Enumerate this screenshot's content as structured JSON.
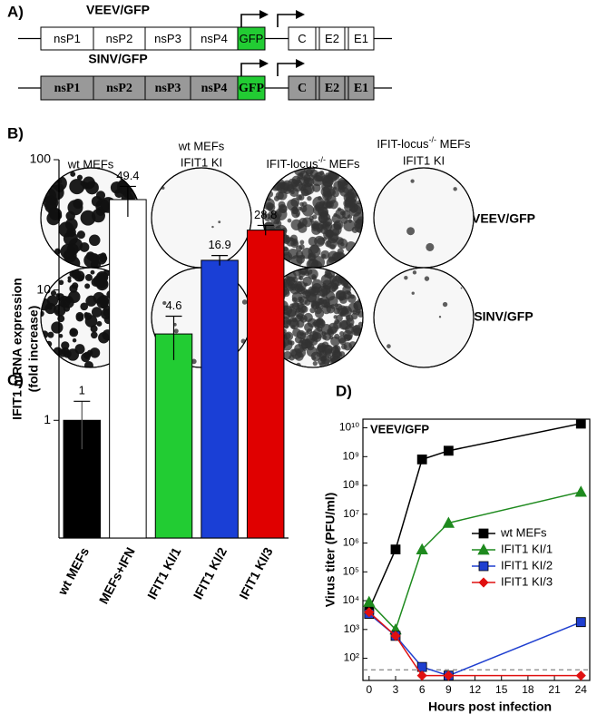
{
  "figure": {
    "panel_a": {
      "label": "A)",
      "constructs": [
        {
          "name": "VEEV/GFP",
          "segments": [
            "nsP1",
            "nsP2",
            "nsP3",
            "nsP4",
            "GFP",
            "C",
            "E2",
            "E1"
          ]
        },
        {
          "name": "SINV/GFP",
          "segments": [
            "nsP1",
            "nsP2",
            "nsP3",
            "nsP4",
            "GFP",
            "C",
            "E2",
            "E1"
          ]
        }
      ]
    },
    "panel_b": {
      "label": "B)",
      "columns": [
        {
          "lines": [
            "wt MEFs"
          ]
        },
        {
          "lines": [
            "wt MEFs",
            "IFIT1 KI"
          ]
        },
        {
          "main": "IFIT-locus",
          "sup": "-/-",
          "end": " MEFs"
        },
        {
          "main": "IFIT-locus",
          "sup": "-/-",
          "end": " MEFs",
          "line2": "IFIT1 KI"
        }
      ],
      "rows": [
        "VEEV/GFP",
        "SINV/GFP"
      ]
    },
    "panel_c_label": "C)",
    "panel_d_label": "D)"
  },
  "chart_data": [
    {
      "type": "bar",
      "y_label": [
        "IFIT1 mRNA expression",
        "(fold increase)"
      ],
      "categories": [
        "wt MEFs",
        "MEFs+IFN",
        "IFIT1 KI/1",
        "IFIT1 KI/2",
        "IFIT1 KI/3"
      ],
      "values": [
        1,
        49.4,
        4.6,
        16.9,
        28.8
      ],
      "errors": [
        0.4,
        13,
        1.7,
        1.5,
        2.5
      ],
      "colors": [
        "#000000",
        "#ffffff",
        "#22cc33",
        "#1a3fd6",
        "#e00000"
      ],
      "log_scale": true,
      "ylim": [
        0.125,
        100
      ],
      "yticks": [
        1,
        10,
        100
      ]
    },
    {
      "type": "line",
      "annotation": "VEEV/GFP",
      "x_label": "Hours post infection",
      "y_label": "Virus titer (PFU/ml)",
      "x": [
        0,
        3,
        6,
        9,
        24
      ],
      "series": [
        {
          "name": "wt MEFs",
          "color": "#000000",
          "marker": "square",
          "values": [
            5000,
            600000,
            800000000,
            1600000000,
            14000000000
          ]
        },
        {
          "name": "IFIT1 KI/1",
          "color": "#1e8a1e",
          "marker": "triangle",
          "values": [
            9000,
            1000,
            600000,
            5000000,
            60000000
          ]
        },
        {
          "name": "IFIT1 KI/2",
          "color": "#1f3fd0",
          "marker": "square",
          "values": [
            3500,
            600,
            50,
            25,
            1800
          ]
        },
        {
          "name": "IFIT1 KI/3",
          "color": "#e01010",
          "marker": "diamond",
          "values": [
            4000,
            600,
            25,
            25,
            25
          ]
        }
      ],
      "log_scale": true,
      "xlim": [
        -0.7,
        25
      ],
      "ylim": [
        17,
        20000000000
      ],
      "xticks": [
        0,
        3,
        6,
        9,
        12,
        15,
        18,
        21,
        24
      ],
      "yticks": [
        {
          "value": 100,
          "label": "10²"
        },
        {
          "value": 1000,
          "label": "10³"
        },
        {
          "value": 10000,
          "label": "10⁴"
        },
        {
          "value": 100000,
          "label": "10⁵"
        },
        {
          "value": 1000000,
          "label": "10⁶"
        },
        {
          "value": 10000000,
          "label": "10⁷"
        },
        {
          "value": 100000000,
          "label": "10⁸"
        },
        {
          "value": 1000000000,
          "label": "10⁹"
        },
        {
          "value": 10000000000,
          "label": "10¹⁰"
        }
      ],
      "reference_line": 40,
      "legend": "center-right"
    }
  ]
}
